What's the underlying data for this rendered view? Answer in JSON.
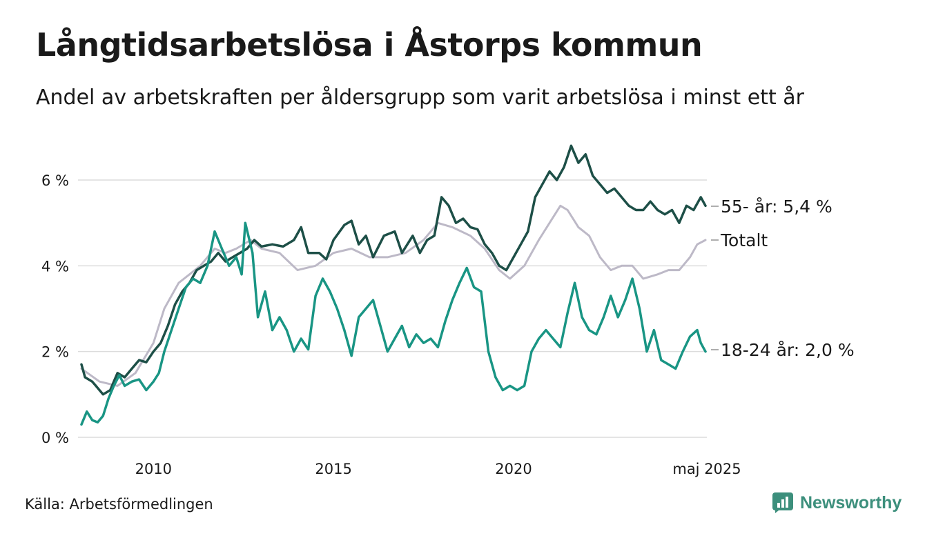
{
  "title": "Långtidsarbetslösa i Åstorps kommun",
  "subtitle": "Andel av arbetskraften per åldersgrupp som varit arbetslösa i minst ett år",
  "source": "Källa: Arbetsförmedlingen",
  "brand": {
    "name": "Newsworthy",
    "icon": "newsworthy-logo-icon",
    "color": "#3c8f7c"
  },
  "chart_data": {
    "type": "line",
    "x_start": 2008.0,
    "x_end": 2025.33,
    "xlim": [
      2008.0,
      2025.33
    ],
    "ylim": [
      0,
      7
    ],
    "yticks": [
      {
        "value": 0,
        "label": "0 %"
      },
      {
        "value": 2,
        "label": "2 %"
      },
      {
        "value": 4,
        "label": "4 %"
      },
      {
        "value": 6,
        "label": "6 %"
      }
    ],
    "xticks": [
      {
        "value": 2010,
        "label": "2010"
      },
      {
        "value": 2015,
        "label": "2015"
      },
      {
        "value": 2020,
        "label": "2020"
      },
      {
        "value": 2025.33,
        "label": "maj 2025"
      }
    ],
    "grid": "horizontal",
    "series": [
      {
        "name": "Totalt",
        "label": "Totalt",
        "color": "#bdb9c7",
        "points": [
          [
            2008.0,
            1.6
          ],
          [
            2008.5,
            1.3
          ],
          [
            2009.0,
            1.2
          ],
          [
            2009.5,
            1.5
          ],
          [
            2010.0,
            2.2
          ],
          [
            2010.3,
            3.0
          ],
          [
            2010.7,
            3.6
          ],
          [
            2011.0,
            3.8
          ],
          [
            2011.3,
            4.0
          ],
          [
            2011.7,
            4.4
          ],
          [
            2012.0,
            4.3
          ],
          [
            2012.3,
            4.4
          ],
          [
            2012.7,
            4.6
          ],
          [
            2013.0,
            4.4
          ],
          [
            2013.5,
            4.3
          ],
          [
            2014.0,
            3.9
          ],
          [
            2014.5,
            4.0
          ],
          [
            2015.0,
            4.3
          ],
          [
            2015.5,
            4.4
          ],
          [
            2016.0,
            4.2
          ],
          [
            2016.5,
            4.2
          ],
          [
            2017.0,
            4.3
          ],
          [
            2017.5,
            4.6
          ],
          [
            2017.9,
            5.0
          ],
          [
            2018.3,
            4.9
          ],
          [
            2018.8,
            4.7
          ],
          [
            2019.2,
            4.4
          ],
          [
            2019.6,
            3.9
          ],
          [
            2019.9,
            3.7
          ],
          [
            2020.3,
            4.0
          ],
          [
            2020.7,
            4.6
          ],
          [
            2021.0,
            5.0
          ],
          [
            2021.3,
            5.4
          ],
          [
            2021.5,
            5.3
          ],
          [
            2021.8,
            4.9
          ],
          [
            2022.1,
            4.7
          ],
          [
            2022.4,
            4.2
          ],
          [
            2022.7,
            3.9
          ],
          [
            2023.0,
            4.0
          ],
          [
            2023.3,
            4.0
          ],
          [
            2023.6,
            3.7
          ],
          [
            2024.0,
            3.8
          ],
          [
            2024.3,
            3.9
          ],
          [
            2024.6,
            3.9
          ],
          [
            2024.9,
            4.2
          ],
          [
            2025.1,
            4.5
          ],
          [
            2025.33,
            4.6
          ]
        ]
      },
      {
        "name": "55- år",
        "label": "55- år: 5,4 %",
        "color": "#1d4f47",
        "points": [
          [
            2008.0,
            1.7
          ],
          [
            2008.1,
            1.4
          ],
          [
            2008.2,
            1.35
          ],
          [
            2008.3,
            1.3
          ],
          [
            2008.4,
            1.2
          ],
          [
            2008.5,
            1.1
          ],
          [
            2008.6,
            1.0
          ],
          [
            2008.7,
            1.05
          ],
          [
            2008.8,
            1.1
          ],
          [
            2008.9,
            1.3
          ],
          [
            2009.0,
            1.5
          ],
          [
            2009.2,
            1.4
          ],
          [
            2009.4,
            1.6
          ],
          [
            2009.6,
            1.8
          ],
          [
            2009.8,
            1.75
          ],
          [
            2010.0,
            2.0
          ],
          [
            2010.2,
            2.2
          ],
          [
            2010.4,
            2.6
          ],
          [
            2010.6,
            3.1
          ],
          [
            2010.8,
            3.4
          ],
          [
            2011.0,
            3.6
          ],
          [
            2011.2,
            3.9
          ],
          [
            2011.4,
            4.0
          ],
          [
            2011.6,
            4.1
          ],
          [
            2011.8,
            4.3
          ],
          [
            2012.0,
            4.1
          ],
          [
            2012.2,
            4.2
          ],
          [
            2012.4,
            4.3
          ],
          [
            2012.6,
            4.4
          ],
          [
            2012.8,
            4.6
          ],
          [
            2013.0,
            4.45
          ],
          [
            2013.3,
            4.5
          ],
          [
            2013.6,
            4.45
          ],
          [
            2013.9,
            4.6
          ],
          [
            2014.1,
            4.9
          ],
          [
            2014.3,
            4.3
          ],
          [
            2014.6,
            4.3
          ],
          [
            2014.8,
            4.15
          ],
          [
            2015.0,
            4.6
          ],
          [
            2015.3,
            4.95
          ],
          [
            2015.5,
            5.05
          ],
          [
            2015.7,
            4.5
          ],
          [
            2015.9,
            4.7
          ],
          [
            2016.1,
            4.2
          ],
          [
            2016.4,
            4.7
          ],
          [
            2016.7,
            4.8
          ],
          [
            2016.9,
            4.3
          ],
          [
            2017.2,
            4.7
          ],
          [
            2017.4,
            4.3
          ],
          [
            2017.6,
            4.6
          ],
          [
            2017.8,
            4.7
          ],
          [
            2018.0,
            5.6
          ],
          [
            2018.2,
            5.4
          ],
          [
            2018.4,
            5.0
          ],
          [
            2018.6,
            5.1
          ],
          [
            2018.8,
            4.9
          ],
          [
            2019.0,
            4.85
          ],
          [
            2019.2,
            4.5
          ],
          [
            2019.4,
            4.3
          ],
          [
            2019.6,
            4.0
          ],
          [
            2019.8,
            3.9
          ],
          [
            2020.0,
            4.2
          ],
          [
            2020.2,
            4.5
          ],
          [
            2020.4,
            4.8
          ],
          [
            2020.6,
            5.6
          ],
          [
            2020.8,
            5.9
          ],
          [
            2021.0,
            6.2
          ],
          [
            2021.2,
            6.0
          ],
          [
            2021.4,
            6.3
          ],
          [
            2021.6,
            6.8
          ],
          [
            2021.8,
            6.4
          ],
          [
            2022.0,
            6.6
          ],
          [
            2022.2,
            6.1
          ],
          [
            2022.4,
            5.9
          ],
          [
            2022.6,
            5.7
          ],
          [
            2022.8,
            5.8
          ],
          [
            2023.0,
            5.6
          ],
          [
            2023.2,
            5.4
          ],
          [
            2023.4,
            5.3
          ],
          [
            2023.6,
            5.3
          ],
          [
            2023.8,
            5.5
          ],
          [
            2024.0,
            5.3
          ],
          [
            2024.2,
            5.2
          ],
          [
            2024.4,
            5.3
          ],
          [
            2024.6,
            5.0
          ],
          [
            2024.8,
            5.4
          ],
          [
            2025.0,
            5.3
          ],
          [
            2025.2,
            5.6
          ],
          [
            2025.33,
            5.4
          ]
        ]
      },
      {
        "name": "18-24 år",
        "label": "18-24 år: 2,0 %",
        "color": "#199584",
        "points": [
          [
            2008.0,
            0.3
          ],
          [
            2008.15,
            0.6
          ],
          [
            2008.3,
            0.4
          ],
          [
            2008.45,
            0.35
          ],
          [
            2008.6,
            0.5
          ],
          [
            2008.75,
            0.9
          ],
          [
            2008.9,
            1.2
          ],
          [
            2009.05,
            1.45
          ],
          [
            2009.2,
            1.2
          ],
          [
            2009.4,
            1.3
          ],
          [
            2009.6,
            1.35
          ],
          [
            2009.8,
            1.1
          ],
          [
            2010.0,
            1.3
          ],
          [
            2010.15,
            1.5
          ],
          [
            2010.3,
            2.0
          ],
          [
            2010.5,
            2.5
          ],
          [
            2010.7,
            3.0
          ],
          [
            2010.9,
            3.5
          ],
          [
            2011.1,
            3.7
          ],
          [
            2011.3,
            3.6
          ],
          [
            2011.5,
            4.0
          ],
          [
            2011.7,
            4.8
          ],
          [
            2011.9,
            4.4
          ],
          [
            2012.1,
            4.0
          ],
          [
            2012.3,
            4.2
          ],
          [
            2012.45,
            3.8
          ],
          [
            2012.55,
            5.0
          ],
          [
            2012.75,
            4.3
          ],
          [
            2012.9,
            2.8
          ],
          [
            2013.1,
            3.4
          ],
          [
            2013.3,
            2.5
          ],
          [
            2013.5,
            2.8
          ],
          [
            2013.7,
            2.5
          ],
          [
            2013.9,
            2.0
          ],
          [
            2014.1,
            2.3
          ],
          [
            2014.3,
            2.05
          ],
          [
            2014.5,
            3.3
          ],
          [
            2014.7,
            3.7
          ],
          [
            2014.9,
            3.4
          ],
          [
            2015.1,
            3.0
          ],
          [
            2015.3,
            2.5
          ],
          [
            2015.5,
            1.9
          ],
          [
            2015.7,
            2.8
          ],
          [
            2015.9,
            3.0
          ],
          [
            2016.1,
            3.2
          ],
          [
            2016.3,
            2.6
          ],
          [
            2016.5,
            2.0
          ],
          [
            2016.7,
            2.3
          ],
          [
            2016.9,
            2.6
          ],
          [
            2017.1,
            2.1
          ],
          [
            2017.3,
            2.4
          ],
          [
            2017.5,
            2.2
          ],
          [
            2017.7,
            2.3
          ],
          [
            2017.9,
            2.1
          ],
          [
            2018.1,
            2.7
          ],
          [
            2018.3,
            3.2
          ],
          [
            2018.5,
            3.6
          ],
          [
            2018.7,
            3.95
          ],
          [
            2018.9,
            3.5
          ],
          [
            2019.1,
            3.4
          ],
          [
            2019.3,
            2.0
          ],
          [
            2019.5,
            1.4
          ],
          [
            2019.7,
            1.1
          ],
          [
            2019.9,
            1.2
          ],
          [
            2020.1,
            1.1
          ],
          [
            2020.3,
            1.2
          ],
          [
            2020.5,
            2.0
          ],
          [
            2020.7,
            2.3
          ],
          [
            2020.9,
            2.5
          ],
          [
            2021.1,
            2.3
          ],
          [
            2021.3,
            2.1
          ],
          [
            2021.5,
            2.9
          ],
          [
            2021.7,
            3.6
          ],
          [
            2021.9,
            2.8
          ],
          [
            2022.1,
            2.5
          ],
          [
            2022.3,
            2.4
          ],
          [
            2022.5,
            2.8
          ],
          [
            2022.7,
            3.3
          ],
          [
            2022.9,
            2.8
          ],
          [
            2023.1,
            3.2
          ],
          [
            2023.3,
            3.7
          ],
          [
            2023.5,
            3.0
          ],
          [
            2023.7,
            2.0
          ],
          [
            2023.9,
            2.5
          ],
          [
            2024.1,
            1.8
          ],
          [
            2024.3,
            1.7
          ],
          [
            2024.5,
            1.6
          ],
          [
            2024.7,
            2.0
          ],
          [
            2024.9,
            2.35
          ],
          [
            2025.1,
            2.5
          ],
          [
            2025.2,
            2.2
          ],
          [
            2025.33,
            2.0
          ]
        ]
      }
    ]
  }
}
